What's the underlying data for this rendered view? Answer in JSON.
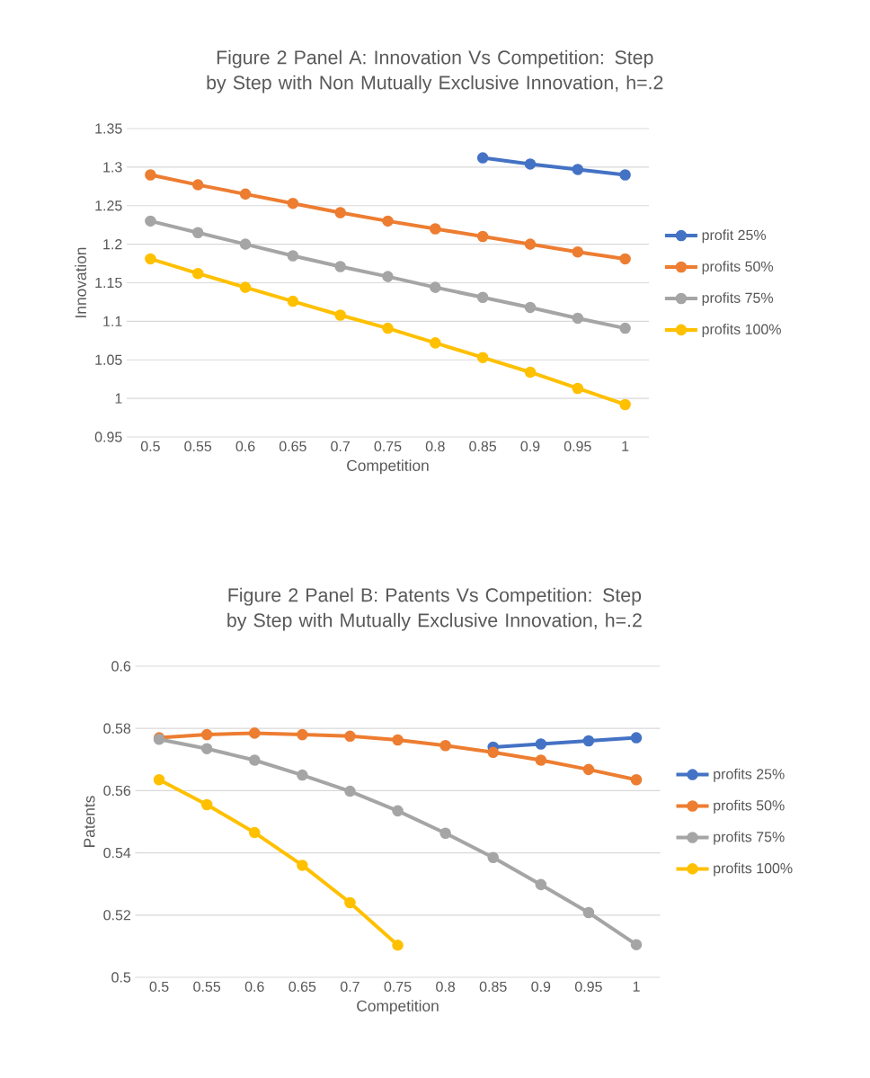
{
  "chart_data": [
    {
      "type": "line",
      "title": "Figure 2 Panel A: Innovation Vs Competition: Step by Step with Non Mutually Exclusive Innovation, h=.2",
      "xlabel": "Competition",
      "ylabel": "Innovation",
      "categories": [
        "0.5",
        "0.55",
        "0.6",
        "0.65",
        "0.7",
        "0.75",
        "0.8",
        "0.85",
        "0.9",
        "0.95",
        "1"
      ],
      "series": [
        {
          "name": "profit 25%",
          "color": "#4472c4",
          "values": [
            null,
            null,
            null,
            null,
            null,
            null,
            null,
            1.312,
            1.304,
            1.297,
            1.29
          ]
        },
        {
          "name": "profits 50%",
          "color": "#ed7d31",
          "values": [
            1.29,
            1.277,
            1.265,
            1.253,
            1.241,
            1.23,
            1.22,
            1.21,
            1.2,
            1.19,
            1.181
          ]
        },
        {
          "name": "profits 75%",
          "color": "#a5a5a5",
          "values": [
            1.23,
            1.215,
            1.2,
            1.185,
            1.171,
            1.158,
            1.144,
            1.131,
            1.118,
            1.104,
            1.091
          ]
        },
        {
          "name": "profits 100%",
          "color": "#ffc000",
          "values": [
            1.181,
            1.162,
            1.144,
            1.126,
            1.108,
            1.091,
            1.072,
            1.053,
            1.034,
            1.013,
            0.992
          ]
        }
      ],
      "ylim": [
        0.95,
        1.35
      ],
      "yticks": [
        0.95,
        1,
        1.05,
        1.1,
        1.15,
        1.2,
        1.25,
        1.3,
        1.35
      ],
      "grid": "y",
      "legend": "right",
      "marker": "circle"
    },
    {
      "type": "line",
      "title": "Figure 2 Panel B:  Patents Vs Competition: Step by Step with Mutually Exclusive Innovation, h=.2",
      "xlabel": "Competition",
      "ylabel": "Patents",
      "categories": [
        "0.5",
        "0.55",
        "0.6",
        "0.65",
        "0.7",
        "0.75",
        "0.8",
        "0.85",
        "0.9",
        "0.95",
        "1"
      ],
      "series": [
        {
          "name": "profits 25%",
          "color": "#4472c4",
          "values": [
            null,
            null,
            null,
            null,
            null,
            null,
            null,
            0.574,
            0.575,
            0.576,
            0.577
          ]
        },
        {
          "name": "profits 50%",
          "color": "#ed7d31",
          "values": [
            0.577,
            0.578,
            0.5785,
            0.578,
            0.5775,
            0.5763,
            0.5745,
            0.5723,
            0.5698,
            0.5668,
            0.5635
          ]
        },
        {
          "name": "profits 75%",
          "color": "#a5a5a5",
          "values": [
            0.5765,
            0.5735,
            0.5698,
            0.565,
            0.5598,
            0.5535,
            0.5463,
            0.5385,
            0.5298,
            0.5208,
            0.5105
          ]
        },
        {
          "name": "profits 100%",
          "color": "#ffc000",
          "values": [
            0.5635,
            0.5555,
            0.5465,
            0.536,
            0.524,
            0.5103,
            null,
            null,
            null,
            null,
            null
          ]
        }
      ],
      "ylim": [
        0.5,
        0.6
      ],
      "yticks": [
        0.5,
        0.52,
        0.54,
        0.56,
        0.58,
        0.6
      ],
      "grid": "y",
      "legend": "right",
      "marker": "circle"
    }
  ]
}
